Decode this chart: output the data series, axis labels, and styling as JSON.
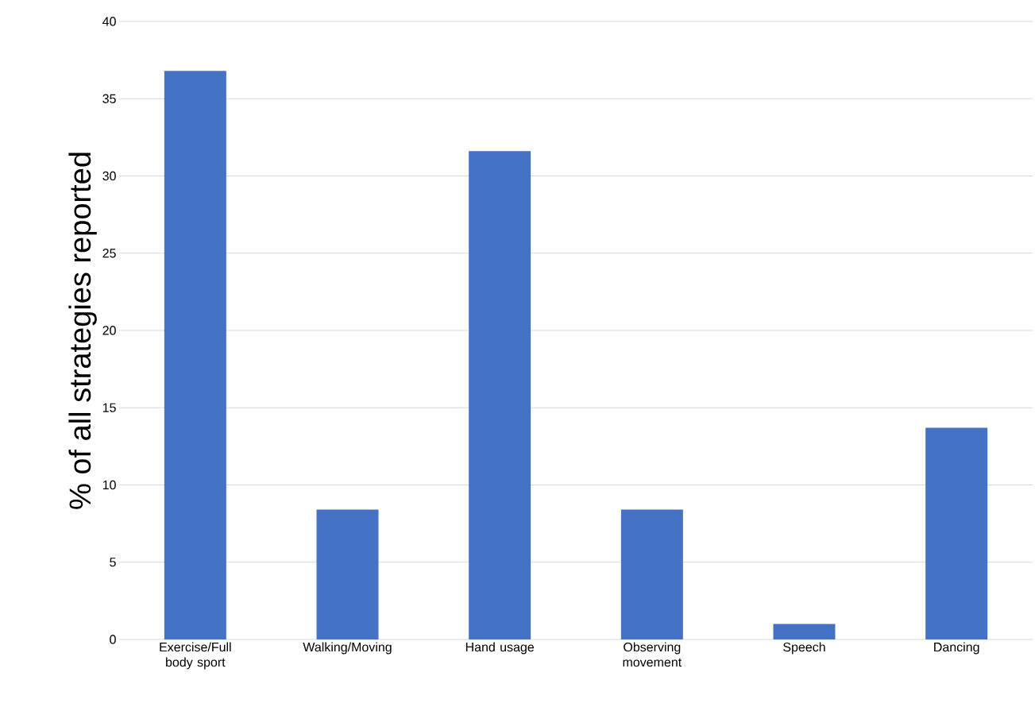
{
  "chart_data": {
    "type": "bar",
    "ylabel": "% of all strategies reported",
    "categories": [
      "Exercise/Full body sport",
      "Walking/Moving",
      "Hand usage",
      "Observing movement",
      "Speech",
      "Dancing"
    ],
    "values": [
      36.8,
      8.4,
      31.6,
      8.4,
      1.0,
      13.7
    ],
    "color": "#4472c4",
    "ylim": [
      0,
      40
    ],
    "yticks": [
      0,
      5,
      10,
      15,
      20,
      25,
      30,
      35,
      40
    ],
    "grid": "y"
  }
}
